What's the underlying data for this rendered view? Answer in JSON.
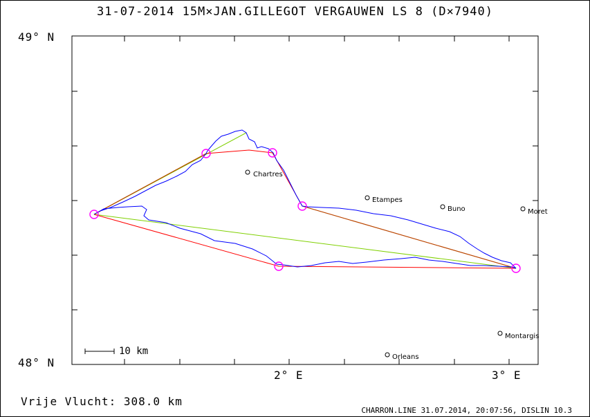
{
  "header": {
    "title": "31-07-2014   15M×JAN.GILLEGOT VERGAUWEN   LS 8 (D×7940)"
  },
  "axes": {
    "lat_top": "49° N",
    "lat_bottom": "48° N",
    "lon_2": "2° E",
    "lon_3": "3° E"
  },
  "scale_bar": {
    "label": "10 km"
  },
  "flight": {
    "label": "Vrije Vlucht:  308.0 km"
  },
  "footer": {
    "text": "CHARRON.LINE 31.07.2014, 20:07:56, DISLIN 10.3"
  },
  "towns": [
    {
      "name": "Chartres"
    },
    {
      "name": "Etampes"
    },
    {
      "name": "Buno"
    },
    {
      "name": "Moret"
    },
    {
      "name": "Montargis"
    },
    {
      "name": "Orleans"
    }
  ],
  "colors": {
    "track": "#0000ff",
    "route_red": "#ff0000",
    "route_green": "#7fd000",
    "turnpoint": "#ff00ff",
    "frame": "#000000"
  }
}
